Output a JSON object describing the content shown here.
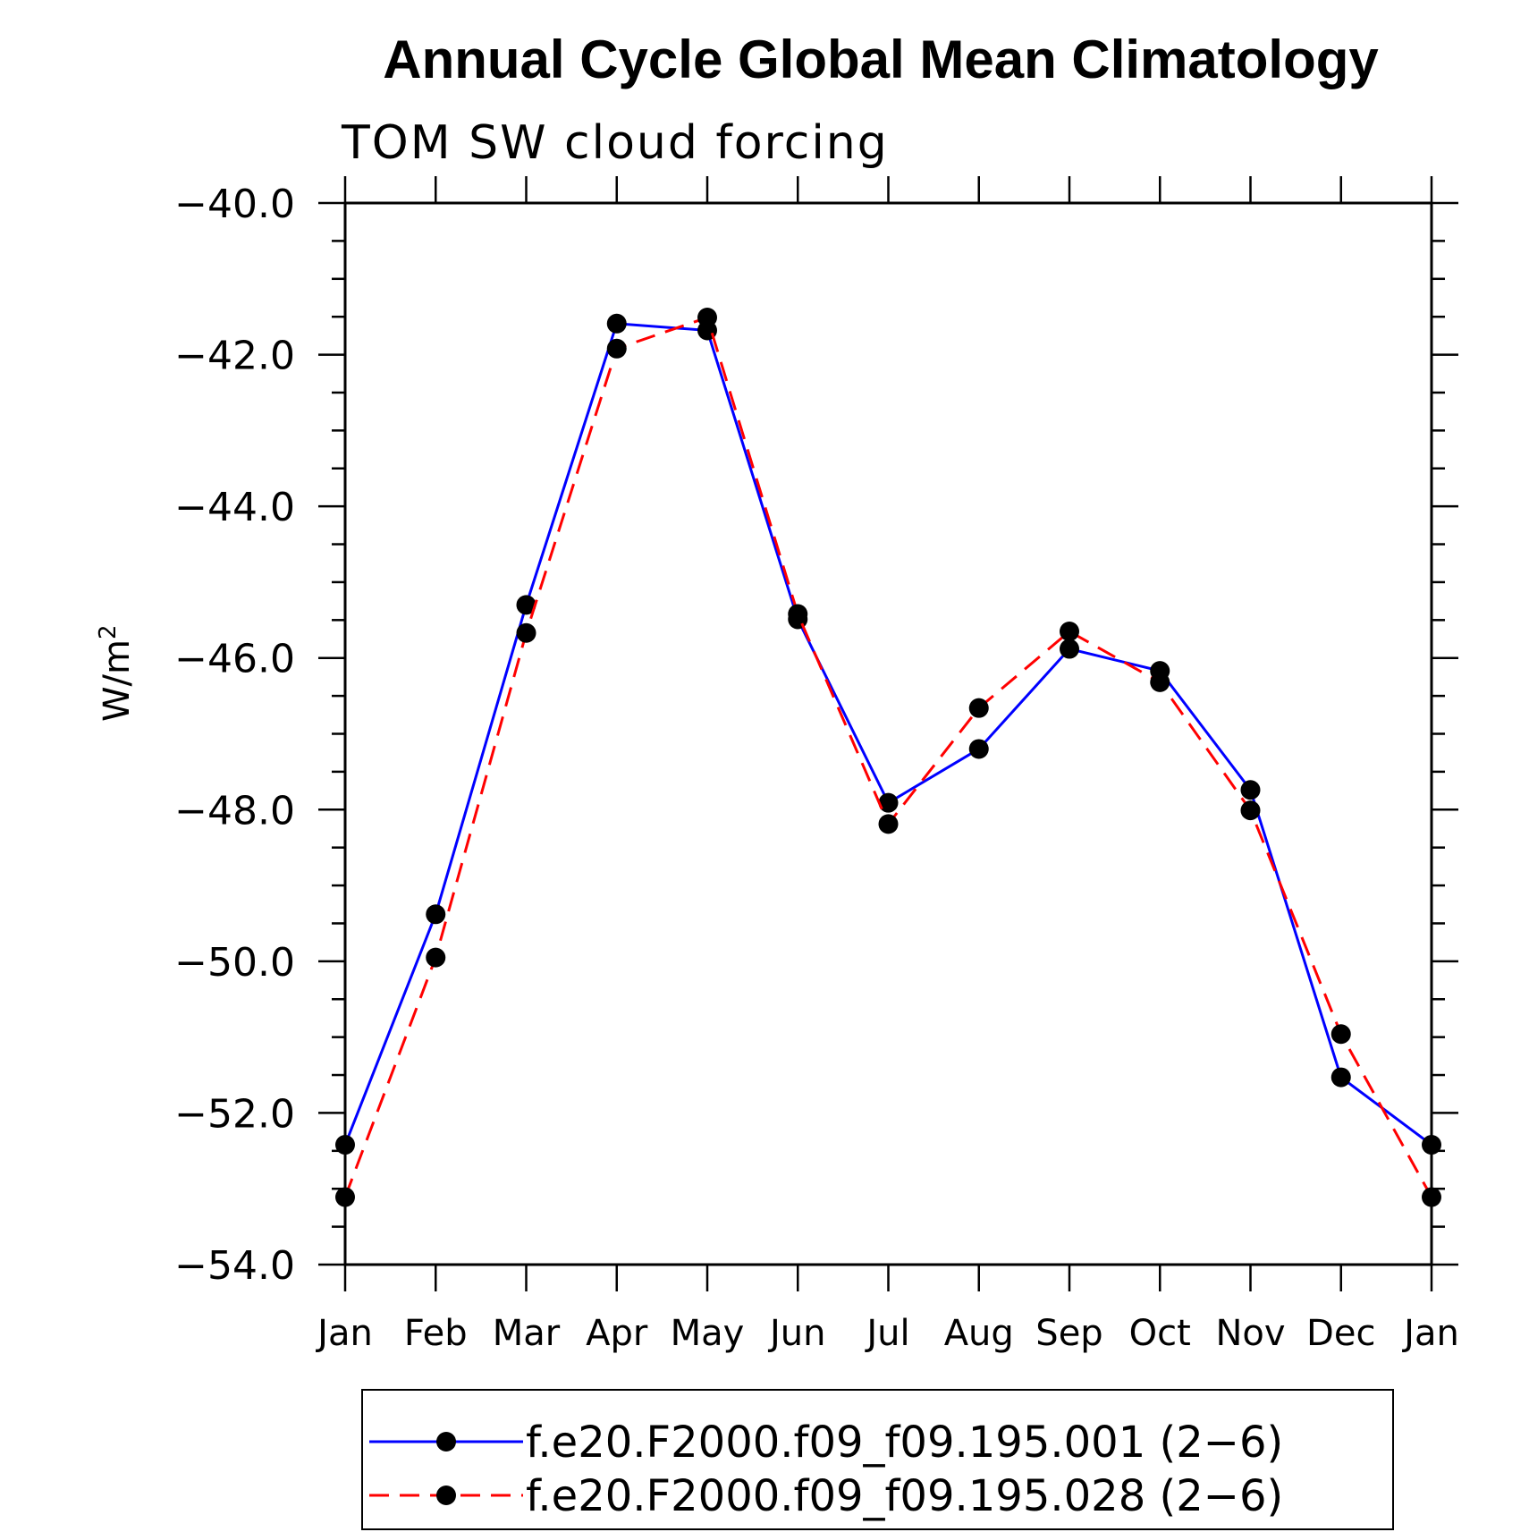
{
  "chart_data": {
    "type": "line",
    "title": "Annual Cycle Global Mean Climatology",
    "subtitle": "TOM SW cloud forcing",
    "ylabel": "W/m",
    "ylabel_superscript": "2",
    "xlabel": "",
    "categories": [
      "Jan",
      "Feb",
      "Mar",
      "Apr",
      "May",
      "Jun",
      "Jul",
      "Aug",
      "Sep",
      "Oct",
      "Nov",
      "Dec",
      "Jan"
    ],
    "ylim": [
      -54.0,
      -40.0
    ],
    "yticks": [
      "-40.0",
      "-42.0",
      "-44.0",
      "-46.0",
      "-48.0",
      "-50.0",
      "-52.0",
      "-54.0"
    ],
    "ytick_values": [
      -40,
      -42,
      -44,
      -46,
      -48,
      -50,
      -52,
      -54
    ],
    "series": [
      {
        "name": "f.e20.F2000.f09_f09.195.001 (2-6)",
        "color": "#0000ff",
        "dash": "solid",
        "marker": "filled-circle",
        "values": [
          -52.42,
          -49.38,
          -45.3,
          -41.59,
          -41.68,
          -45.49,
          -47.91,
          -47.2,
          -45.88,
          -46.17,
          -47.74,
          -51.53,
          -52.42
        ]
      },
      {
        "name": "f.e20.F2000.f09_f09.195.028 (2-6)",
        "color": "#ff0000",
        "dash": "dashed",
        "marker": "filled-circle",
        "values": [
          -53.11,
          -49.95,
          -45.67,
          -41.92,
          -41.51,
          -45.42,
          -48.19,
          -46.66,
          -45.65,
          -46.32,
          -48.01,
          -50.96,
          -53.11
        ]
      }
    ],
    "grid": false,
    "legend_position": "bottom"
  }
}
